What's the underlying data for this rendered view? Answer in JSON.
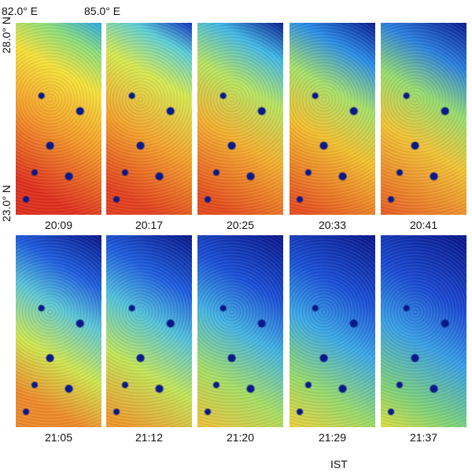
{
  "axes": {
    "lon_labels": [
      "82.0° E",
      "85.0° E"
    ],
    "lat_labels": [
      "28.0° N",
      "23.0° N"
    ],
    "time_zone_label": "IST"
  },
  "panels": {
    "times": [
      "20:09",
      "20:17",
      "20:25",
      "20:33",
      "20:41",
      "21:05",
      "21:12",
      "21:20",
      "21:29",
      "21:37"
    ]
  }
}
